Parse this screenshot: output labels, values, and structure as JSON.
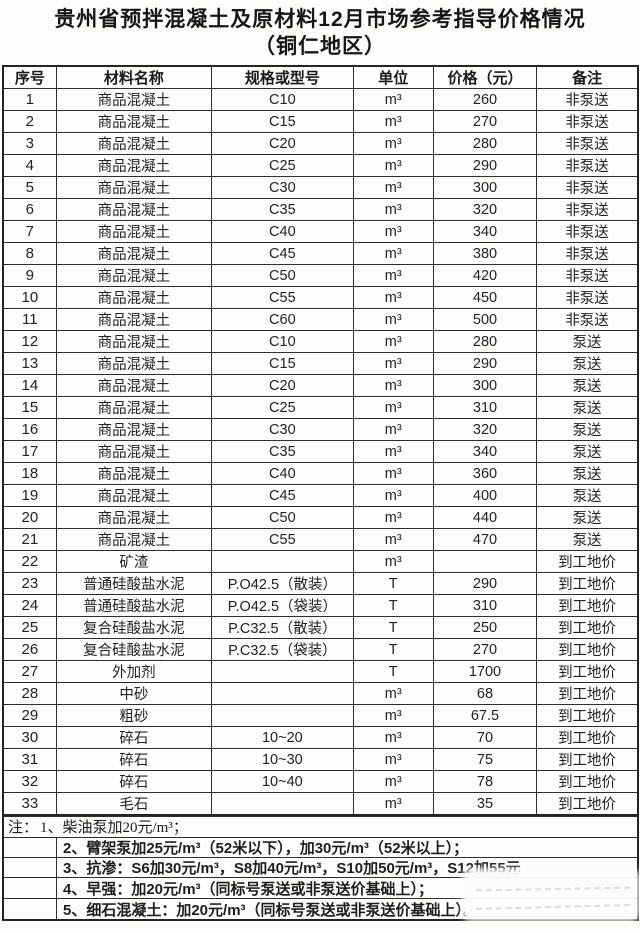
{
  "title": {
    "line1": "贵州省预拌混凝土及原材料12月市场参考指导价格情况",
    "line2": "（铜仁地区）"
  },
  "table": {
    "headers": [
      "序号",
      "材料名称",
      "规格或型号",
      "单位",
      "价格（元）",
      "备注"
    ],
    "rows": [
      [
        "1",
        "商品混凝土",
        "C10",
        "m³",
        "260",
        "非泵送"
      ],
      [
        "2",
        "商品混凝土",
        "C15",
        "m³",
        "270",
        "非泵送"
      ],
      [
        "3",
        "商品混凝土",
        "C20",
        "m³",
        "280",
        "非泵送"
      ],
      [
        "4",
        "商品混凝土",
        "C25",
        "m³",
        "290",
        "非泵送"
      ],
      [
        "5",
        "商品混凝土",
        "C30",
        "m³",
        "300",
        "非泵送"
      ],
      [
        "6",
        "商品混凝土",
        "C35",
        "m³",
        "320",
        "非泵送"
      ],
      [
        "7",
        "商品混凝土",
        "C40",
        "m³",
        "340",
        "非泵送"
      ],
      [
        "8",
        "商品混凝土",
        "C45",
        "m³",
        "380",
        "非泵送"
      ],
      [
        "9",
        "商品混凝土",
        "C50",
        "m³",
        "420",
        "非泵送"
      ],
      [
        "10",
        "商品混凝土",
        "C55",
        "m³",
        "450",
        "非泵送"
      ],
      [
        "11",
        "商品混凝土",
        "C60",
        "m³",
        "500",
        "非泵送"
      ],
      [
        "12",
        "商品混凝土",
        "C10",
        "m³",
        "280",
        "泵送"
      ],
      [
        "13",
        "商品混凝土",
        "C15",
        "m³",
        "290",
        "泵送"
      ],
      [
        "14",
        "商品混凝土",
        "C20",
        "m³",
        "300",
        "泵送"
      ],
      [
        "15",
        "商品混凝土",
        "C25",
        "m³",
        "310",
        "泵送"
      ],
      [
        "16",
        "商品混凝土",
        "C30",
        "m³",
        "320",
        "泵送"
      ],
      [
        "17",
        "商品混凝土",
        "C35",
        "m³",
        "340",
        "泵送"
      ],
      [
        "18",
        "商品混凝土",
        "C40",
        "m³",
        "360",
        "泵送"
      ],
      [
        "19",
        "商品混凝土",
        "C45",
        "m³",
        "400",
        "泵送"
      ],
      [
        "20",
        "商品混凝土",
        "C50",
        "m³",
        "440",
        "泵送"
      ],
      [
        "21",
        "商品混凝土",
        "C55",
        "m³",
        "470",
        "泵送"
      ],
      [
        "22",
        "矿渣",
        "",
        "m³",
        "",
        "到工地价"
      ],
      [
        "23",
        "普通硅酸盐水泥",
        "P.O42.5（散装）",
        "T",
        "290",
        "到工地价"
      ],
      [
        "24",
        "普通硅酸盐水泥",
        "P.O42.5（袋装）",
        "T",
        "310",
        "到工地价"
      ],
      [
        "25",
        "复合硅酸盐水泥",
        "P.C32.5（散装）",
        "T",
        "250",
        "到工地价"
      ],
      [
        "26",
        "复合硅酸盐水泥",
        "P.C32.5（袋装）",
        "T",
        "270",
        "到工地价"
      ],
      [
        "27",
        "外加剂",
        "",
        "T",
        "1700",
        "到工地价"
      ],
      [
        "28",
        "中砂",
        "",
        "m³",
        "68",
        "到工地价"
      ],
      [
        "29",
        "粗砂",
        "",
        "m³",
        "67.5",
        "到工地价"
      ],
      [
        "30",
        "碎石",
        "10~20",
        "m³",
        "70",
        "到工地价"
      ],
      [
        "31",
        "碎石",
        "10~30",
        "m³",
        "75",
        "到工地价"
      ],
      [
        "32",
        "碎石",
        "10~40",
        "m³",
        "78",
        "到工地价"
      ],
      [
        "33",
        "毛石",
        "",
        "m³",
        "35",
        "到工地价"
      ]
    ]
  },
  "notes": {
    "prefix": "注：",
    "items": [
      "1、柴油泵加20元/m³；",
      "2、臂架泵加25元/m³（52米以下），加30元/m³（52米以上）；",
      "3、抗渗：S6加30元/m³，S8加40元/m³，S10加50元/m³，S12加55元",
      "4、早强：加20元/m³（同标号泵送或非泵送价基础上）；",
      "5、细石混凝土：加20元/m³（同标号泵送或非泵送价基础上）。"
    ]
  },
  "colors": {
    "background": "#fdfdfc",
    "text": "#1c1c1c",
    "border": "#2e2e2e"
  }
}
